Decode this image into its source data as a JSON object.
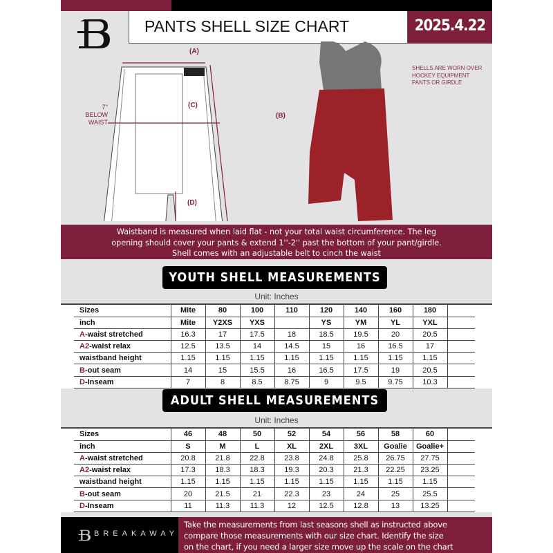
{
  "header": {
    "title": "PANTS SHELL SIZE CHART",
    "date": "2025.4.22",
    "logo_letter": "B"
  },
  "diagram": {
    "label_a": "(A)",
    "label_b": "(B)",
    "label_c": "(C)",
    "label_d": "(D)",
    "c_note_line1": "7'' BELOW",
    "c_note_line2": "WAIST",
    "photo_note": "SHELLS ARE WORN OVER HOCKEY EQUIPMENT PANTS OR GIRDLE"
  },
  "banner": {
    "line1": "Waistband is measured when laid flat - not your total waist circumference. The leg",
    "line2": "opening should cover your pants & extend 1''-2'' past the bottom of your pant/girdle.",
    "line3": "Shell comes with an adjustable belt to cinch the waist"
  },
  "youth": {
    "title": "YOUTH SHELL MEASUREMENTS",
    "unit": "Unit: Inches",
    "rows": [
      {
        "p": "",
        "l": "Sizes",
        "v": [
          "Mite",
          "80",
          "100",
          "110",
          "120",
          "140",
          "160",
          "180"
        ]
      },
      {
        "p": "",
        "l": "inch",
        "v": [
          "Mite",
          "Y2XS",
          "YXS",
          "",
          "YS",
          "YM",
          "YL",
          "YXL"
        ]
      },
      {
        "p": "A",
        "l": "-waist stretched",
        "v": [
          "16.3",
          "17",
          "17.5",
          "18",
          "18.5",
          "19.5",
          "20",
          "20.5"
        ]
      },
      {
        "p": "A2",
        "l": "-waist relax",
        "v": [
          "12.5",
          "13.5",
          "14",
          "14.5",
          "15",
          "16",
          "16.5",
          "17"
        ]
      },
      {
        "p": "",
        "l": "waistband height",
        "v": [
          "1.15",
          "1.15",
          "1.15",
          "1.15",
          "1.15",
          "1.15",
          "1.15",
          "1.15"
        ]
      },
      {
        "p": "B",
        "l": "-out seam",
        "v": [
          "14",
          "15",
          "15.5",
          "16",
          "16.5",
          "17.5",
          "19",
          "20.5"
        ]
      },
      {
        "p": "D",
        "l": "-Inseam",
        "v": [
          "7",
          "8",
          "8.5",
          "8.75",
          "9",
          "9.5",
          "9.75",
          "10.3"
        ]
      }
    ]
  },
  "adult": {
    "title": "ADULT SHELL MEASUREMENTS",
    "unit": "Unit: Inches",
    "rows": [
      {
        "p": "",
        "l": "Sizes",
        "v": [
          "46",
          "48",
          "50",
          "52",
          "54",
          "56",
          "58",
          "60"
        ]
      },
      {
        "p": "",
        "l": "inch",
        "v": [
          "S",
          "M",
          "L",
          "XL",
          "2XL",
          "3XL",
          "Goalie",
          "Goalie+"
        ]
      },
      {
        "p": "A",
        "l": "-waist stretched",
        "v": [
          "20.8",
          "21.8",
          "22.8",
          "23.8",
          "24.8",
          "25.8",
          "26.75",
          "27.75"
        ]
      },
      {
        "p": "A2",
        "l": "-waist relax",
        "v": [
          "17.3",
          "18.3",
          "18.3",
          "19.3",
          "20.3",
          "21.3",
          "22.25",
          "23.25"
        ]
      },
      {
        "p": "",
        "l": "waistband height",
        "v": [
          "1.15",
          "1.15",
          "1.15",
          "1.15",
          "1.15",
          "1.15",
          "1.15",
          "1.15"
        ]
      },
      {
        "p": "B",
        "l": "-out seam",
        "v": [
          "20",
          "21.5",
          "21",
          "22.3",
          "23",
          "24",
          "25",
          "25.5"
        ]
      },
      {
        "p": "D",
        "l": "-Inseam",
        "v": [
          "11",
          "11.3",
          "11.3",
          "12",
          "12.5",
          "12.8",
          "13",
          "13.25"
        ]
      }
    ]
  },
  "footer": {
    "brand": "BREAKAWAY",
    "line1": "Take the measurements from last seasons shell as instructed above",
    "line2": "compare those measurements  with our size chart. Identify the size",
    "line3": "on the chart, if you need a larger size move up the scale on the chart"
  },
  "colors": {
    "accent": "#7d1f3a",
    "background": "#e3e3e6"
  }
}
